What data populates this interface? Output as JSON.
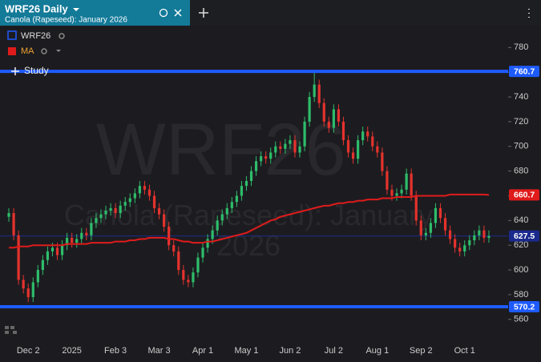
{
  "chart_data": {
    "type": "candlestick",
    "title": "WRF26 Daily",
    "subtitle": "Canola (Rapeseed): January 2026",
    "study_button": "Study",
    "categories": [
      null,
      null,
      null,
      null,
      "Dec 2",
      null,
      null,
      null,
      null,
      null,
      null,
      null,
      null,
      "2025",
      null,
      null,
      null,
      null,
      null,
      null,
      null,
      null,
      "Feb 3",
      null,
      null,
      null,
      null,
      null,
      null,
      null,
      null,
      "Mar 3",
      null,
      null,
      null,
      null,
      null,
      null,
      null,
      null,
      "Apr 1",
      null,
      null,
      null,
      null,
      null,
      null,
      null,
      null,
      "May 1",
      null,
      null,
      null,
      null,
      null,
      null,
      null,
      null,
      "Jun 2",
      null,
      null,
      null,
      null,
      null,
      null,
      null,
      null,
      "Jul 2",
      null,
      null,
      null,
      null,
      null,
      null,
      null,
      null,
      "Aug 1",
      null,
      null,
      null,
      null,
      null,
      null,
      null,
      null,
      "Sep 2",
      null,
      null,
      null,
      null,
      null,
      null,
      null,
      null,
      "Oct 1",
      null,
      null,
      null,
      null,
      null
    ],
    "series": [
      {
        "name": "WRF26",
        "color": "#1e5bff",
        "up_color": "#2ebd6b",
        "down_color": "#e5322d",
        "open": [
          643,
          646,
          628,
          592,
          585,
          578,
          590,
          600,
          608,
          615,
          618,
          612,
          620,
          626,
          622,
          625,
          630,
          628,
          638,
          642,
          645,
          648,
          650,
          646,
          652,
          655,
          658,
          662,
          668,
          665,
          660,
          650,
          645,
          635,
          620,
          615,
          600,
          592,
          590,
          598,
          610,
          618,
          625,
          632,
          640,
          645,
          650,
          655,
          660,
          668,
          672,
          680,
          688,
          692,
          690,
          695,
          700,
          698,
          702,
          705,
          695,
          700,
          720,
          740,
          750,
          735,
          720,
          715,
          730,
          720,
          705,
          695,
          690,
          705,
          712,
          708,
          700,
          695,
          680,
          665,
          660,
          662,
          665,
          678,
          660,
          640,
          628,
          630,
          638,
          650,
          642,
          632,
          625,
          618,
          615,
          620,
          624,
          628,
          632,
          626
        ],
        "high": [
          650,
          650,
          632,
          596,
          589,
          594,
          604,
          612,
          619,
          622,
          622,
          624,
          630,
          630,
          629,
          634,
          634,
          642,
          646,
          649,
          652,
          654,
          654,
          656,
          659,
          662,
          666,
          672,
          672,
          669,
          664,
          654,
          649,
          639,
          624,
          619,
          604,
          596,
          602,
          614,
          622,
          629,
          636,
          644,
          649,
          654,
          659,
          664,
          672,
          676,
          684,
          692,
          696,
          696,
          699,
          704,
          704,
          706,
          709,
          709,
          704,
          724,
          744,
          760,
          754,
          739,
          724,
          734,
          734,
          724,
          709,
          699,
          709,
          716,
          716,
          712,
          704,
          699,
          684,
          669,
          666,
          669,
          682,
          682,
          664,
          644,
          634,
          642,
          654,
          654,
          646,
          636,
          629,
          622,
          624,
          628,
          632,
          636,
          636,
          632
        ],
        "low": [
          639,
          624,
          588,
          581,
          574,
          574,
          586,
          596,
          604,
          611,
          608,
          608,
          616,
          618,
          618,
          621,
          624,
          624,
          634,
          638,
          641,
          644,
          642,
          642,
          648,
          651,
          654,
          658,
          661,
          656,
          646,
          641,
          631,
          616,
          611,
          596,
          588,
          586,
          586,
          594,
          606,
          614,
          621,
          628,
          636,
          641,
          646,
          651,
          656,
          664,
          668,
          676,
          684,
          686,
          686,
          691,
          694,
          694,
          698,
          691,
          691,
          696,
          716,
          736,
          731,
          716,
          711,
          711,
          716,
          701,
          691,
          686,
          686,
          701,
          704,
          696,
          691,
          676,
          661,
          656,
          656,
          658,
          661,
          656,
          636,
          624,
          624,
          626,
          634,
          638,
          628,
          621,
          614,
          611,
          611,
          616,
          620,
          624,
          622,
          622
        ],
        "close": [
          646,
          628,
          592,
          585,
          578,
          590,
          600,
          608,
          615,
          618,
          612,
          620,
          626,
          622,
          625,
          630,
          628,
          638,
          642,
          645,
          648,
          650,
          646,
          652,
          655,
          658,
          662,
          668,
          665,
          660,
          650,
          645,
          635,
          620,
          615,
          600,
          592,
          590,
          598,
          610,
          618,
          625,
          632,
          640,
          645,
          650,
          655,
          660,
          668,
          672,
          680,
          688,
          692,
          690,
          695,
          700,
          698,
          702,
          705,
          695,
          700,
          720,
          740,
          750,
          735,
          720,
          715,
          730,
          720,
          705,
          695,
          690,
          705,
          712,
          708,
          700,
          695,
          680,
          665,
          660,
          662,
          665,
          678,
          660,
          640,
          628,
          630,
          638,
          650,
          642,
          632,
          625,
          618,
          615,
          620,
          624,
          628,
          632,
          626,
          627.5
        ]
      },
      {
        "name": "MA",
        "color": "#e01b1b",
        "values": [
          618,
          618,
          619,
          619,
          619,
          620,
          620,
          620,
          620,
          620,
          620,
          620,
          621,
          621,
          621,
          621,
          621,
          622,
          622,
          622,
          622,
          622,
          623,
          623,
          623,
          624,
          624,
          625,
          625,
          626,
          626,
          626,
          626,
          625,
          625,
          624,
          623,
          623,
          622,
          622,
          622,
          623,
          623,
          624,
          625,
          626,
          627,
          628,
          629,
          630,
          632,
          634,
          636,
          638,
          640,
          641,
          643,
          644,
          645,
          646,
          647,
          648,
          649,
          650,
          651,
          652,
          652,
          653,
          654,
          654,
          655,
          655,
          656,
          656,
          657,
          657,
          657,
          658,
          658,
          658,
          659,
          659,
          659,
          659,
          660,
          660,
          660,
          660,
          660,
          660,
          660,
          661,
          661,
          661,
          661,
          661,
          661,
          661,
          661,
          660.7
        ]
      }
    ],
    "hlines": [
      {
        "value": 760.7,
        "color": "#1e5bff"
      },
      {
        "value": 570.2,
        "color": "#1e5bff"
      }
    ],
    "ylim": [
      543,
      799
    ],
    "yticks": [
      560,
      580,
      600,
      620,
      640,
      660,
      680,
      700,
      720,
      740,
      760,
      780
    ]
  }
}
